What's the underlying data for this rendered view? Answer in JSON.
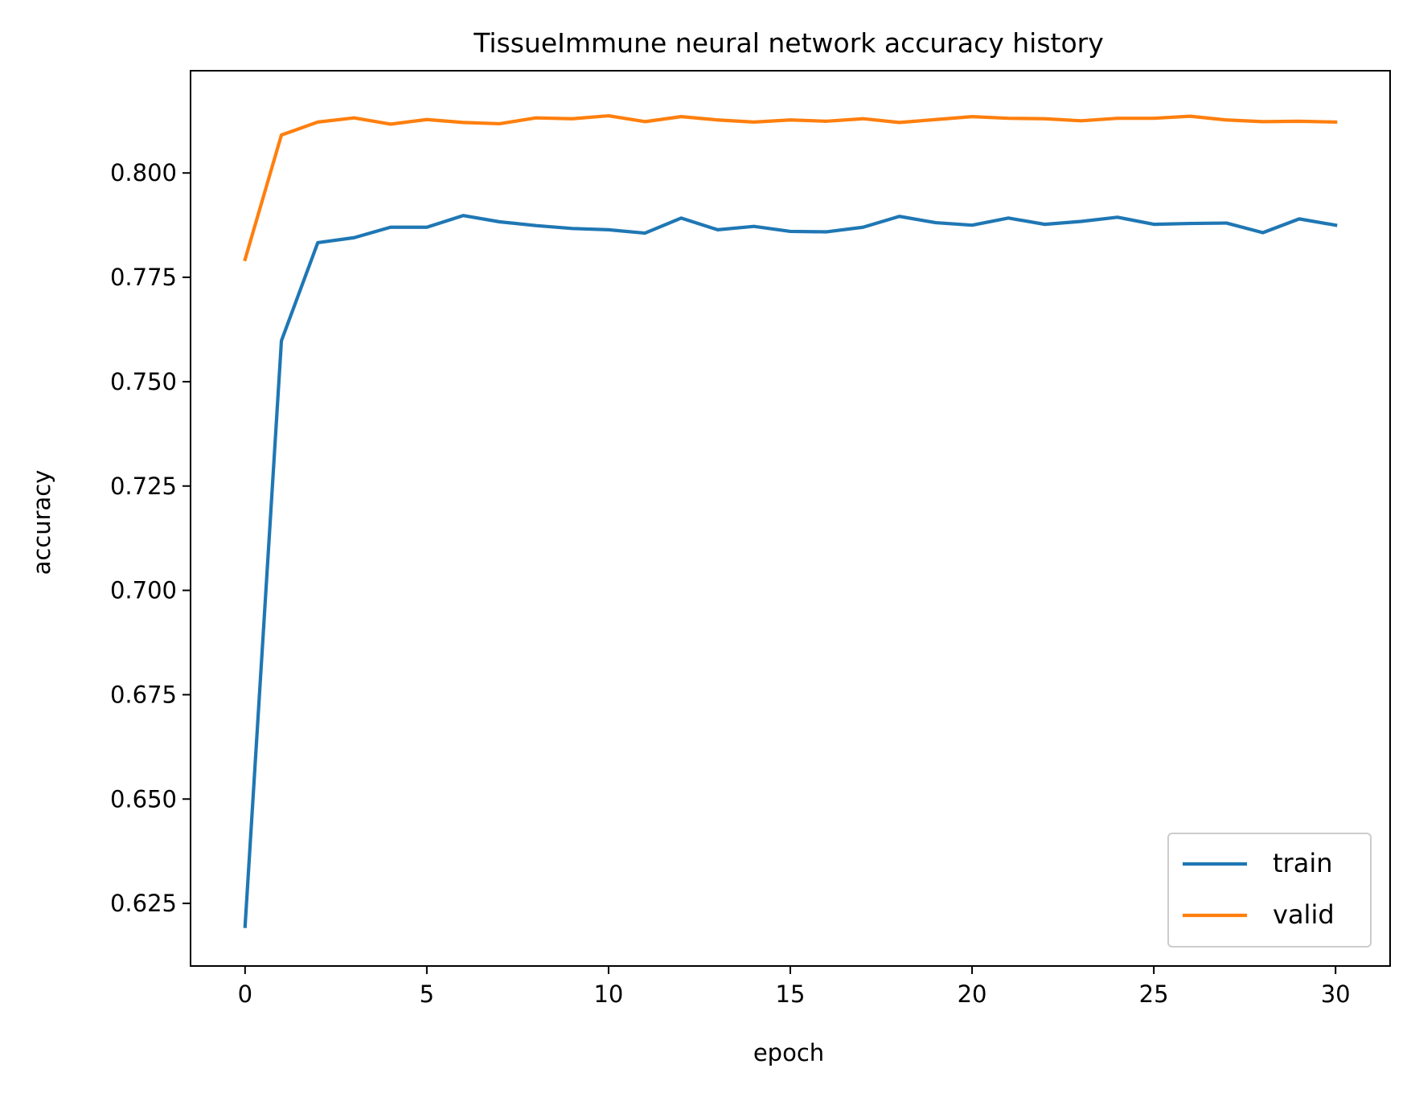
{
  "chart_data": {
    "type": "line",
    "title": "TissueImmune neural network accuracy history",
    "xlabel": "epoch",
    "ylabel": "accuracy",
    "xlim": [
      -1.5,
      31.5
    ],
    "ylim": [
      0.61,
      0.8245
    ],
    "xticks": [
      0,
      5,
      10,
      15,
      20,
      25,
      30
    ],
    "yticks": [
      0.625,
      0.65,
      0.675,
      0.7,
      0.725,
      0.75,
      0.775,
      0.8
    ],
    "ytick_labels": [
      "0.625",
      "0.650",
      "0.675",
      "0.700",
      "0.725",
      "0.750",
      "0.775",
      "0.800"
    ],
    "grid": false,
    "legend_position": "lower-right",
    "x": [
      0,
      1,
      2,
      3,
      4,
      5,
      6,
      7,
      8,
      9,
      10,
      11,
      12,
      13,
      14,
      15,
      16,
      17,
      18,
      19,
      20,
      21,
      22,
      23,
      24,
      25,
      26,
      27,
      28,
      29,
      30
    ],
    "series": [
      {
        "name": "train",
        "color": "#1f77b4",
        "values": [
          0.6195,
          0.7598,
          0.7833,
          0.7845,
          0.787,
          0.787,
          0.7898,
          0.7883,
          0.7874,
          0.7867,
          0.7864,
          0.7856,
          0.7892,
          0.7864,
          0.7872,
          0.786,
          0.7859,
          0.787,
          0.7896,
          0.7881,
          0.7875,
          0.7892,
          0.7877,
          0.7884,
          0.7894,
          0.7877,
          0.7879,
          0.788,
          0.7857,
          0.789,
          0.7875
        ]
      },
      {
        "name": "valid",
        "color": "#ff7f0e",
        "values": [
          0.7793,
          0.8091,
          0.8122,
          0.8132,
          0.8117,
          0.8128,
          0.8121,
          0.8118,
          0.8132,
          0.813,
          0.8137,
          0.8123,
          0.8135,
          0.8127,
          0.8122,
          0.8127,
          0.8124,
          0.813,
          0.8121,
          0.8128,
          0.8135,
          0.8131,
          0.813,
          0.8125,
          0.8131,
          0.8131,
          0.8136,
          0.8127,
          0.8123,
          0.8124,
          0.8122
        ]
      }
    ]
  }
}
